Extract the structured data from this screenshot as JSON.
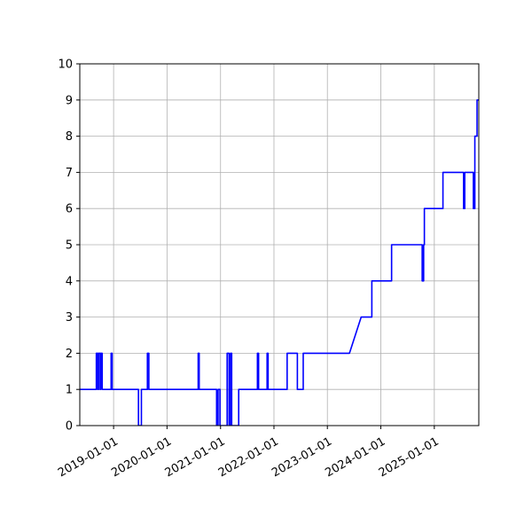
{
  "chart_data": {
    "type": "line",
    "title": "",
    "xlabel": "",
    "ylabel": "",
    "xlim": [
      "2018-05-15",
      "2025-11-01"
    ],
    "ylim": [
      0,
      10
    ],
    "grid": true,
    "x_ticks": [
      "2019-01-01",
      "2020-01-01",
      "2021-01-01",
      "2022-01-01",
      "2023-01-01",
      "2024-01-01",
      "2025-01-01"
    ],
    "y_ticks": [
      0,
      1,
      2,
      3,
      4,
      5,
      6,
      7,
      8,
      9,
      10
    ],
    "series": [
      {
        "name": "",
        "color": "#0000ff",
        "points": [
          [
            "2018-05-15",
            1
          ],
          [
            "2018-09-05",
            1
          ],
          [
            "2018-09-05",
            2
          ],
          [
            "2018-09-15",
            2
          ],
          [
            "2018-09-15",
            1
          ],
          [
            "2018-09-20",
            1
          ],
          [
            "2018-09-20",
            2
          ],
          [
            "2018-10-01",
            2
          ],
          [
            "2018-10-01",
            1
          ],
          [
            "2018-10-05",
            1
          ],
          [
            "2018-10-05",
            2
          ],
          [
            "2018-10-15",
            2
          ],
          [
            "2018-10-15",
            1
          ],
          [
            "2018-12-15",
            1
          ],
          [
            "2018-12-15",
            2
          ],
          [
            "2018-12-22",
            2
          ],
          [
            "2018-12-22",
            1
          ],
          [
            "2019-06-20",
            1
          ],
          [
            "2019-06-20",
            0
          ],
          [
            "2019-07-10",
            0
          ],
          [
            "2019-07-10",
            1
          ],
          [
            "2019-08-20",
            1
          ],
          [
            "2019-08-20",
            2
          ],
          [
            "2019-08-30",
            2
          ],
          [
            "2019-08-30",
            1
          ],
          [
            "2020-08-01",
            1
          ],
          [
            "2020-08-01",
            2
          ],
          [
            "2020-08-08",
            2
          ],
          [
            "2020-08-08",
            1
          ],
          [
            "2020-12-05",
            1
          ],
          [
            "2020-12-05",
            0
          ],
          [
            "2020-12-15",
            0
          ],
          [
            "2020-12-15",
            1
          ],
          [
            "2020-12-28",
            1
          ],
          [
            "2020-12-28",
            0
          ],
          [
            "2021-02-15",
            0
          ],
          [
            "2021-02-15",
            2
          ],
          [
            "2021-02-28",
            2
          ],
          [
            "2021-02-28",
            0
          ],
          [
            "2021-03-10",
            0
          ],
          [
            "2021-03-10",
            2
          ],
          [
            "2021-03-18",
            2
          ],
          [
            "2021-03-18",
            0
          ],
          [
            "2021-05-05",
            0
          ],
          [
            "2021-05-05",
            1
          ],
          [
            "2021-09-10",
            1
          ],
          [
            "2021-09-10",
            2
          ],
          [
            "2021-09-18",
            2
          ],
          [
            "2021-09-18",
            1
          ],
          [
            "2021-11-15",
            1
          ],
          [
            "2021-11-15",
            2
          ],
          [
            "2021-11-22",
            2
          ],
          [
            "2021-11-22",
            1
          ],
          [
            "2022-04-01",
            1
          ],
          [
            "2022-04-01",
            2
          ],
          [
            "2022-06-10",
            2
          ],
          [
            "2022-06-10",
            1
          ],
          [
            "2022-07-20",
            1
          ],
          [
            "2022-07-20",
            2
          ],
          [
            "2023-06-01",
            2
          ],
          [
            "2023-08-20",
            3
          ],
          [
            "2023-11-01",
            3
          ],
          [
            "2023-11-01",
            4
          ],
          [
            "2024-03-15",
            4
          ],
          [
            "2024-03-15",
            5
          ],
          [
            "2024-10-10",
            5
          ],
          [
            "2024-10-10",
            4
          ],
          [
            "2024-10-20",
            4
          ],
          [
            "2024-10-20",
            5
          ],
          [
            "2024-10-25",
            5
          ],
          [
            "2024-10-25",
            6
          ],
          [
            "2025-03-01",
            6
          ],
          [
            "2025-03-01",
            7
          ],
          [
            "2025-07-20",
            7
          ],
          [
            "2025-07-20",
            6
          ],
          [
            "2025-07-28",
            6
          ],
          [
            "2025-07-28",
            7
          ],
          [
            "2025-09-25",
            7
          ],
          [
            "2025-09-25",
            6
          ],
          [
            "2025-10-05",
            6
          ],
          [
            "2025-10-05",
            8
          ],
          [
            "2025-10-20",
            8
          ],
          [
            "2025-10-20",
            9
          ],
          [
            "2025-11-25",
            9
          ],
          [
            "2025-11-25",
            10
          ]
        ]
      }
    ]
  }
}
